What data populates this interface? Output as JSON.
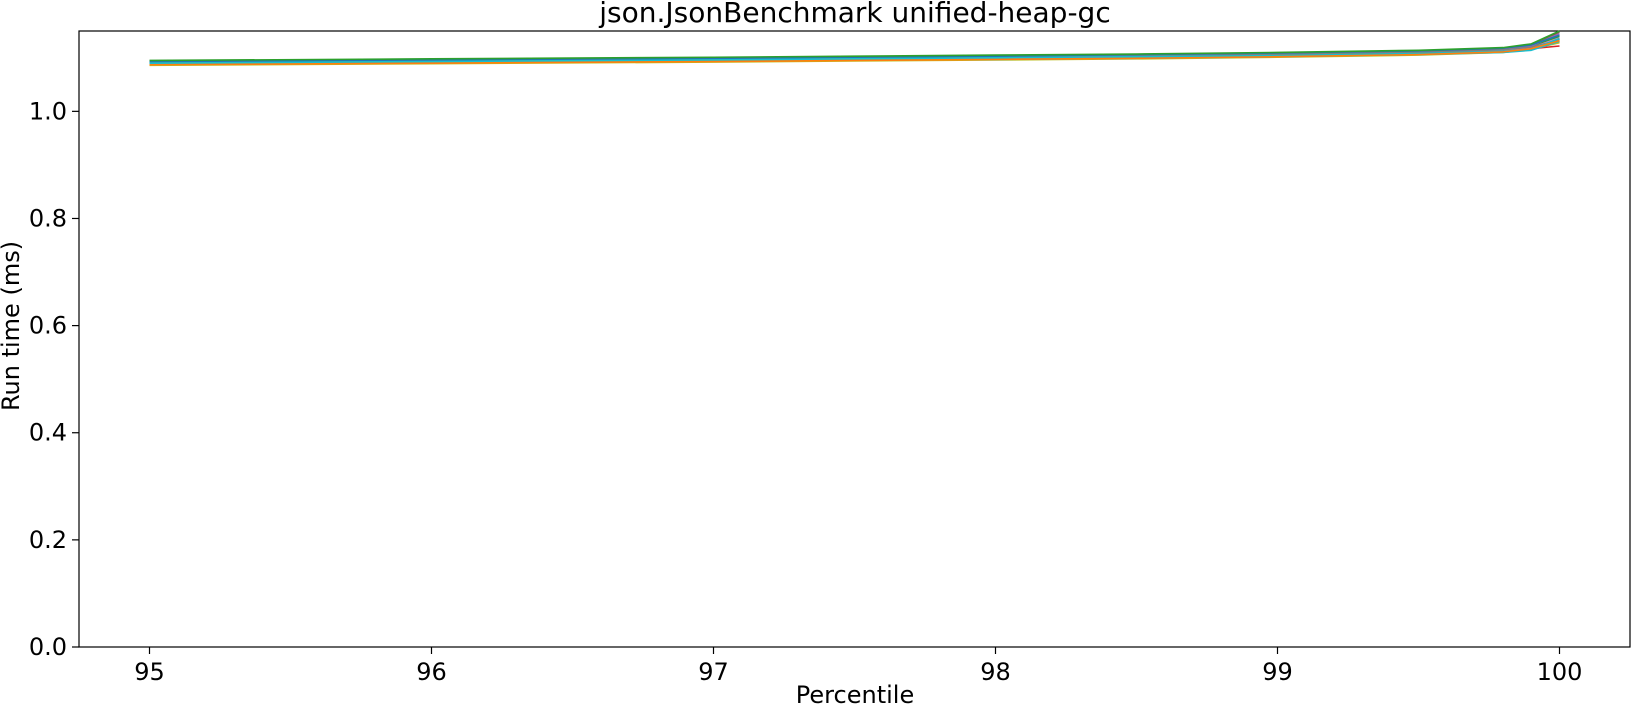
{
  "chart_data": {
    "type": "line",
    "title": "json.JsonBenchmark unified-heap-gc",
    "xlabel": "Percentile",
    "ylabel": "Run time (ms)",
    "xlim": [
      94.75,
      100.25
    ],
    "ylim": [
      0.0,
      1.15
    ],
    "xticks": [
      95,
      96,
      97,
      98,
      99,
      100
    ],
    "yticks": [
      0.0,
      0.2,
      0.4,
      0.6,
      0.8,
      1.0
    ],
    "ytick_labels": [
      "0.0",
      "0.2",
      "0.4",
      "0.6",
      "0.8",
      "1.0"
    ],
    "grid": false,
    "legend": "none",
    "series": [
      {
        "color": "#1f77b4",
        "x": [
          95,
          96,
          97,
          97.5,
          98,
          98.5,
          99,
          99.5,
          99.8,
          99.9,
          100
        ],
        "values": [
          1.091,
          1.094,
          1.097,
          1.099,
          1.101,
          1.103,
          1.106,
          1.11,
          1.114,
          1.118,
          1.135
        ]
      },
      {
        "color": "#ff7f0e",
        "x": [
          95,
          96,
          97,
          97.5,
          98,
          98.5,
          99,
          99.5,
          99.8,
          99.9,
          100
        ],
        "values": [
          1.088,
          1.091,
          1.094,
          1.096,
          1.098,
          1.1,
          1.103,
          1.107,
          1.112,
          1.117,
          1.13
        ]
      },
      {
        "color": "#2ca02c",
        "x": [
          95,
          96,
          97,
          97.5,
          98,
          98.5,
          99,
          99.5,
          99.8,
          99.9,
          100
        ],
        "values": [
          1.093,
          1.096,
          1.099,
          1.101,
          1.103,
          1.105,
          1.108,
          1.112,
          1.116,
          1.121,
          1.14
        ]
      },
      {
        "color": "#d62728",
        "x": [
          95,
          96,
          97,
          97.5,
          98,
          98.5,
          99,
          99.5,
          99.8,
          99.9,
          100
        ],
        "values": [
          1.09,
          1.093,
          1.096,
          1.098,
          1.1,
          1.102,
          1.105,
          1.109,
          1.113,
          1.117,
          1.122
        ]
      },
      {
        "color": "#9467bd",
        "x": [
          95,
          96,
          97,
          97.5,
          98,
          98.5,
          99,
          99.5,
          99.8,
          99.9,
          100
        ],
        "values": [
          1.092,
          1.095,
          1.098,
          1.1,
          1.102,
          1.104,
          1.107,
          1.111,
          1.116,
          1.122,
          1.145
        ]
      },
      {
        "color": "#8c564b",
        "x": [
          95,
          96,
          97,
          97.5,
          98,
          98.5,
          99,
          99.5,
          99.8,
          99.9,
          100
        ],
        "values": [
          1.094,
          1.097,
          1.1,
          1.102,
          1.104,
          1.106,
          1.109,
          1.113,
          1.118,
          1.125,
          1.148
        ]
      },
      {
        "color": "#e377c2",
        "x": [
          95,
          96,
          97,
          97.5,
          98,
          98.5,
          99,
          99.5,
          99.8,
          99.9,
          100
        ],
        "values": [
          1.089,
          1.092,
          1.095,
          1.097,
          1.099,
          1.101,
          1.104,
          1.108,
          1.113,
          1.119,
          1.137
        ]
      },
      {
        "color": "#7f7f7f",
        "x": [
          95,
          96,
          97,
          97.5,
          98,
          98.5,
          99,
          99.5,
          99.8,
          99.9,
          100
        ],
        "values": [
          1.091,
          1.094,
          1.097,
          1.099,
          1.101,
          1.103,
          1.106,
          1.11,
          1.115,
          1.12,
          1.133
        ]
      },
      {
        "color": "#bcbd22",
        "x": [
          95,
          96,
          97,
          97.5,
          98,
          98.5,
          99,
          99.5,
          99.8,
          99.9,
          100
        ],
        "values": [
          1.086,
          1.089,
          1.092,
          1.094,
          1.096,
          1.098,
          1.101,
          1.105,
          1.11,
          1.116,
          1.128
        ]
      },
      {
        "color": "#17becf",
        "x": [
          95,
          96,
          97,
          97.5,
          98,
          98.5,
          99,
          99.5,
          99.8,
          99.9,
          100
        ],
        "values": [
          1.088,
          1.091,
          1.094,
          1.096,
          1.097,
          1.099,
          1.102,
          1.106,
          1.11,
          1.114,
          1.131
        ]
      },
      {
        "color": "#1f77b4",
        "x": [
          95,
          96,
          97,
          97.5,
          98,
          98.5,
          99,
          99.5,
          99.8,
          99.9,
          100
        ],
        "values": [
          1.093,
          1.096,
          1.099,
          1.101,
          1.103,
          1.106,
          1.109,
          1.113,
          1.118,
          1.124,
          1.142
        ]
      },
      {
        "color": "#2ca02c",
        "x": [
          95,
          96,
          97,
          97.5,
          98,
          98.5,
          99,
          99.5,
          99.8,
          99.9,
          100
        ],
        "values": [
          1.095,
          1.098,
          1.101,
          1.103,
          1.105,
          1.107,
          1.11,
          1.114,
          1.119,
          1.126,
          1.15
        ]
      },
      {
        "color": "#17becf",
        "x": [
          95,
          96,
          97,
          97.5,
          98,
          98.5,
          99,
          99.5,
          99.8,
          99.9,
          100
        ],
        "values": [
          1.09,
          1.093,
          1.096,
          1.098,
          1.1,
          1.102,
          1.104,
          1.108,
          1.112,
          1.116,
          1.136
        ]
      },
      {
        "color": "#ff7f0e",
        "x": [
          95,
          96,
          97,
          97.5,
          98,
          98.5,
          99,
          99.5,
          99.8,
          99.9,
          100
        ],
        "values": [
          1.087,
          1.09,
          1.093,
          1.095,
          1.097,
          1.099,
          1.102,
          1.106,
          1.111,
          1.117,
          1.132
        ]
      }
    ]
  }
}
